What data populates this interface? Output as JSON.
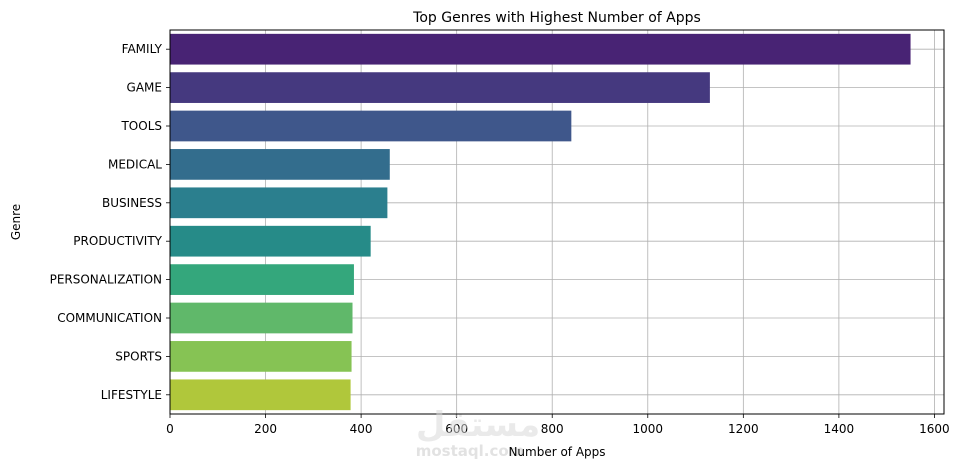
{
  "chart_data": {
    "type": "bar",
    "orientation": "horizontal",
    "title": "Top Genres with Highest Number of Apps",
    "xlabel": "Number of Apps",
    "ylabel": "Genre",
    "xlim": [
      0,
      1620
    ],
    "xticks": [
      0,
      200,
      400,
      600,
      800,
      1000,
      1200,
      1400,
      1600
    ],
    "grid": true,
    "categories": [
      "FAMILY",
      "GAME",
      "TOOLS",
      "MEDICAL",
      "BUSINESS",
      "PRODUCTIVITY",
      "PERSONALIZATION",
      "COMMUNICATION",
      "SPORTS",
      "LIFESTYLE"
    ],
    "values": [
      1550,
      1130,
      840,
      460,
      455,
      420,
      385,
      382,
      380,
      378
    ],
    "colors": [
      "#482374",
      "#45397f",
      "#3f578b",
      "#336d8d",
      "#2b7f8e",
      "#268b88",
      "#34a77c",
      "#60b86a",
      "#86c354",
      "#b0c73b"
    ]
  },
  "watermark": {
    "text": "مستقل",
    "subtext": "mostaql.com"
  }
}
